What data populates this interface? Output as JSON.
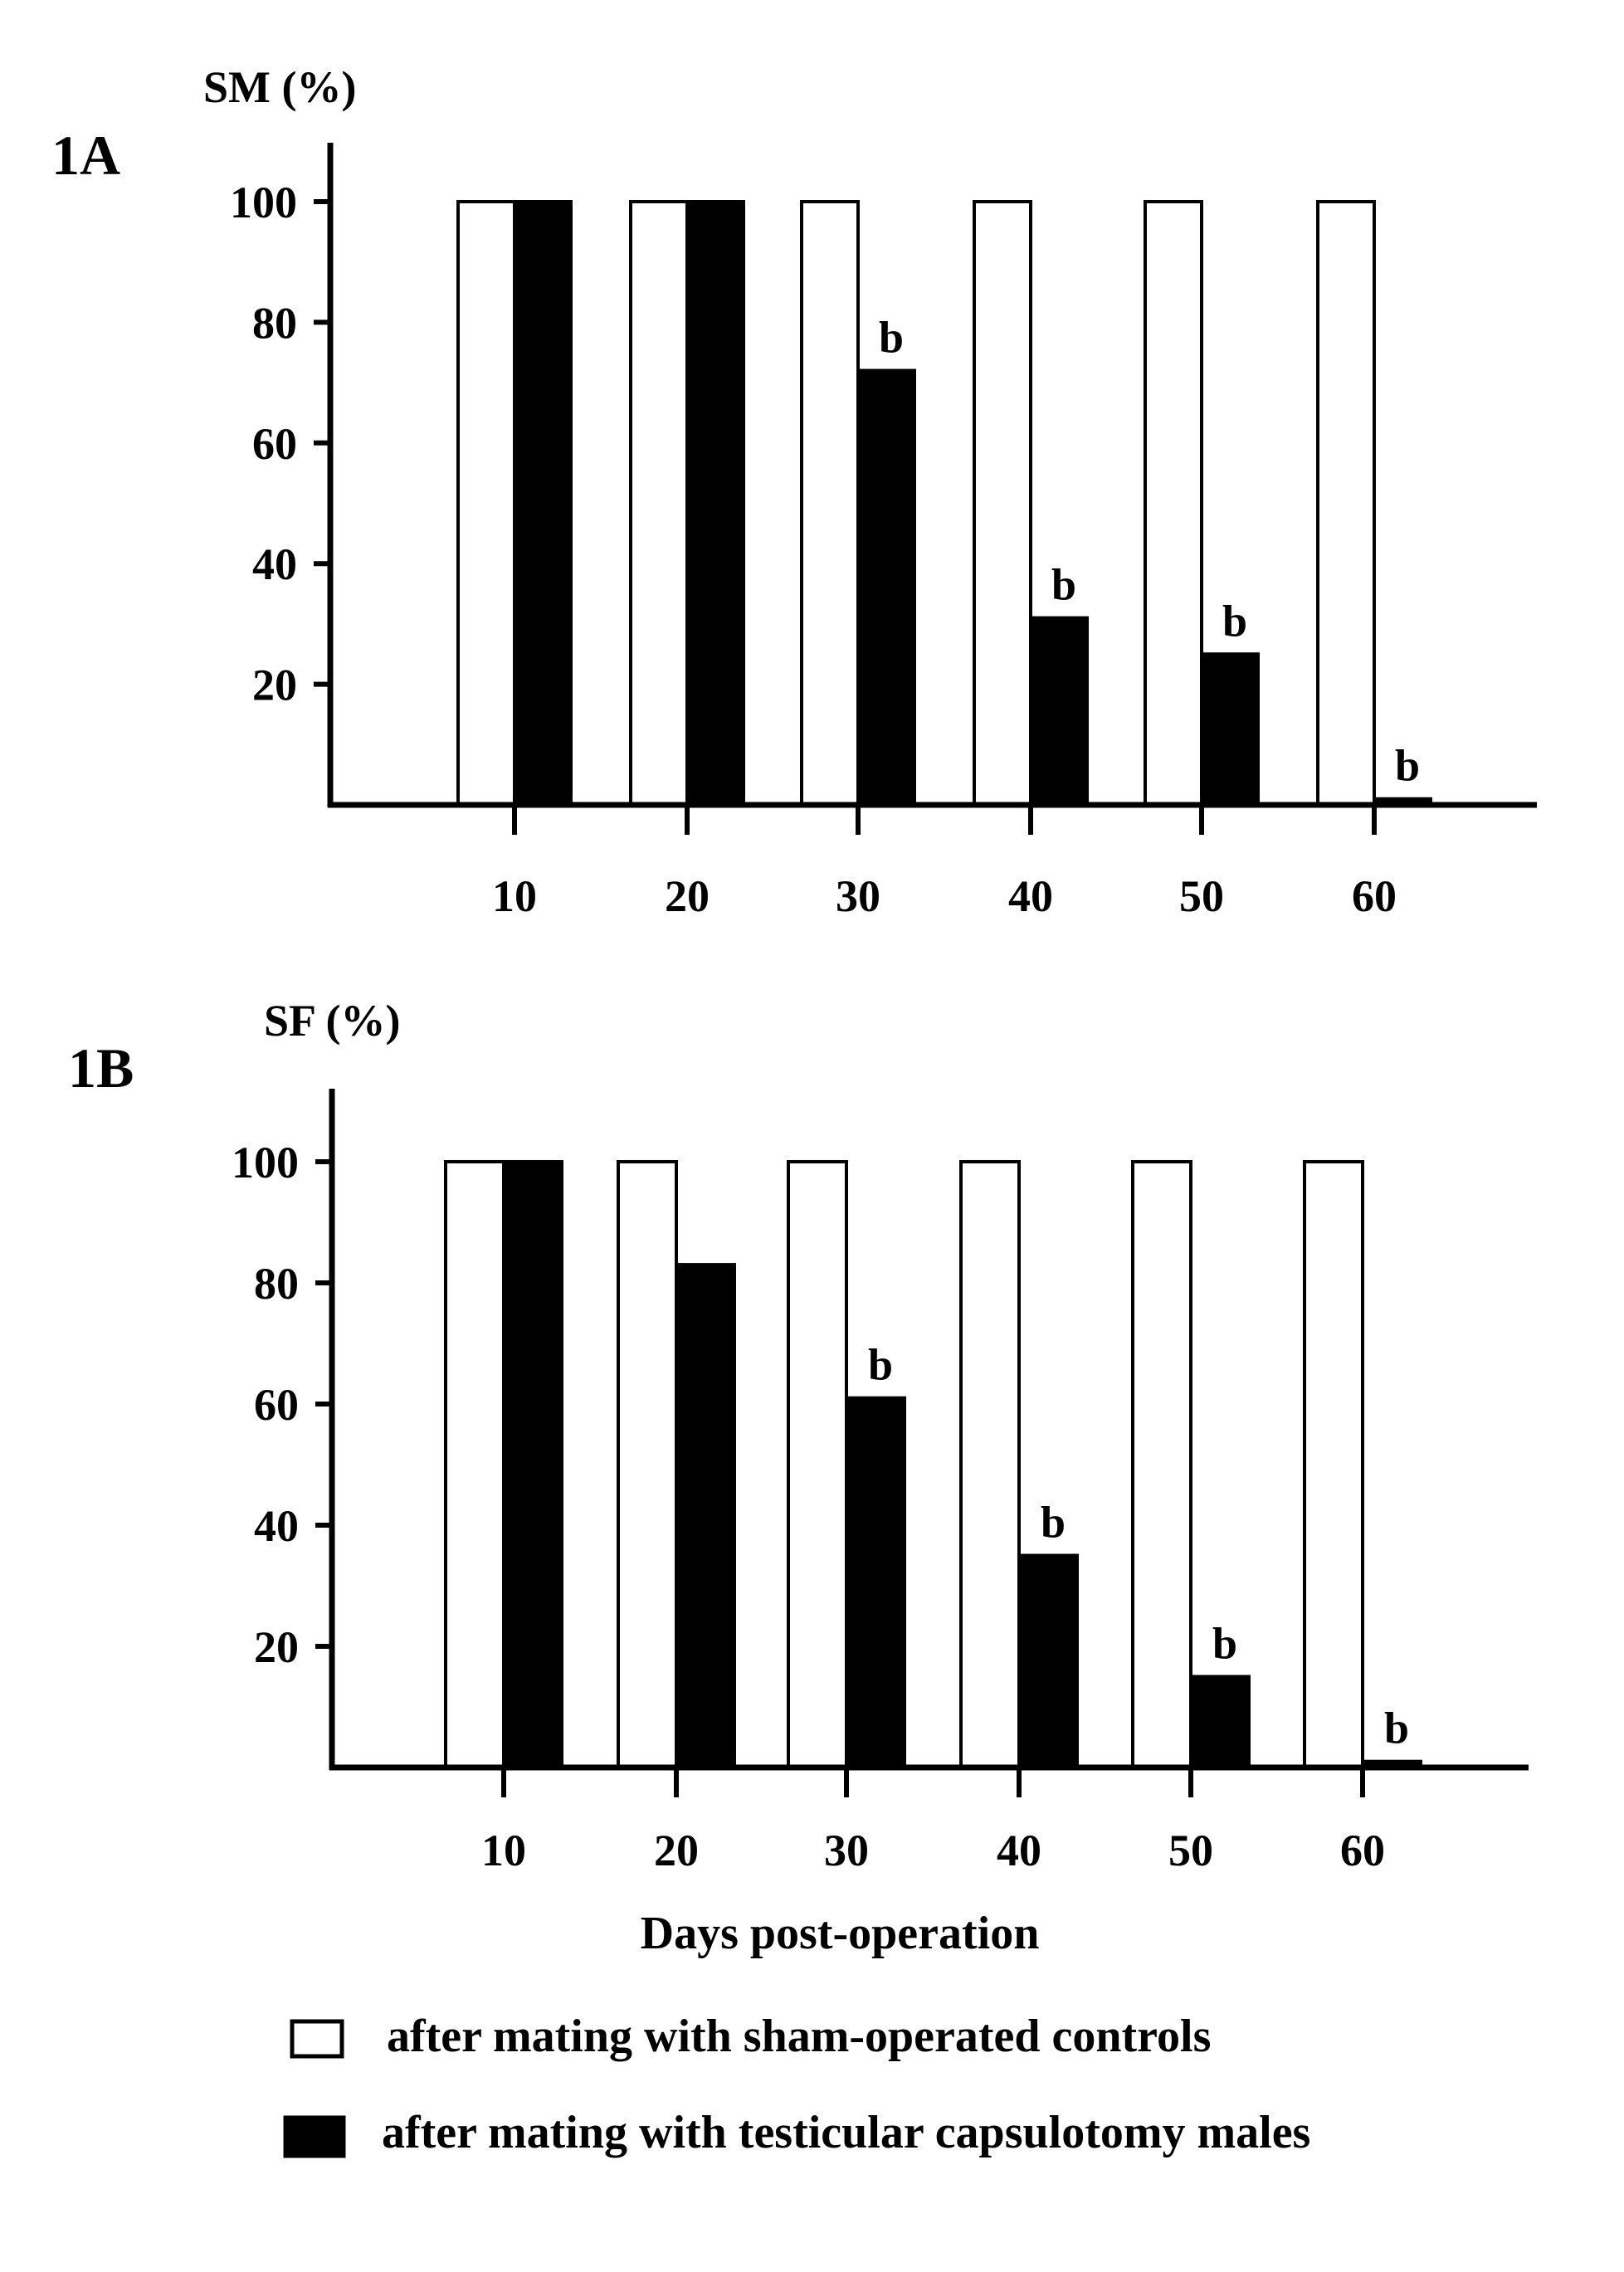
{
  "chart_data": [
    {
      "panel_label": "1A",
      "type": "bar",
      "ylabel": "SM (%)",
      "xlabel": "",
      "categories": [
        "10",
        "20",
        "30",
        "40",
        "50",
        "60"
      ],
      "ylim": [
        0,
        110
      ],
      "yticks": [
        "20",
        "40",
        "60",
        "80",
        "100"
      ],
      "series": [
        {
          "name": "after mating with sham-operated controls",
          "fill": "#ffffff",
          "values": [
            100,
            100,
            100,
            100,
            100,
            100
          ]
        },
        {
          "name": "after mating with testicular capsulotomy males",
          "fill": "#000000",
          "values": [
            100,
            100,
            72,
            31,
            25,
            1
          ]
        }
      ],
      "annotations": [
        "",
        "",
        "b",
        "b",
        "b",
        "b"
      ],
      "grid": false
    },
    {
      "panel_label": "1B",
      "type": "bar",
      "ylabel": "SF (%)",
      "xlabel": "Days post-operation",
      "categories": [
        "10",
        "20",
        "30",
        "40",
        "50",
        "60"
      ],
      "ylim": [
        0,
        110
      ],
      "yticks": [
        "20",
        "40",
        "60",
        "80",
        "100"
      ],
      "series": [
        {
          "name": "after mating with sham-operated controls",
          "fill": "#ffffff",
          "values": [
            100,
            100,
            100,
            100,
            100,
            100
          ]
        },
        {
          "name": "after mating with testicular capsulotomy males",
          "fill": "#000000",
          "values": [
            100,
            83,
            61,
            35,
            15,
            1
          ]
        }
      ],
      "annotations": [
        "",
        "",
        "b",
        "b",
        "b",
        "b"
      ],
      "grid": false
    }
  ],
  "legend": {
    "position": "bottom",
    "items": [
      {
        "label": "after mating with sham-operated controls",
        "fill": "#ffffff"
      },
      {
        "label": "after mating with testicular capsulotomy males",
        "fill": "#000000"
      }
    ]
  }
}
